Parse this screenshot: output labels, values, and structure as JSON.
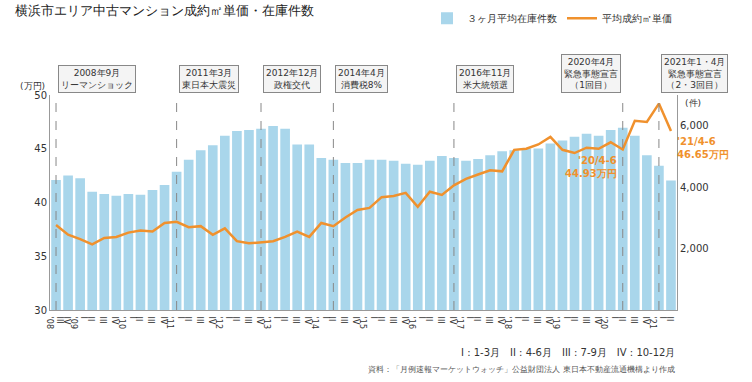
{
  "chart_data": {
    "type": "bar_line",
    "title": "横浜市エリア中古マンション成約㎡単価・在庫件数",
    "ylabel": "(万円)",
    "y2label": "(件)",
    "categories": [
      "III\n'08",
      "IV",
      "I\n'09",
      "II",
      "III",
      "IV",
      "I\n'10",
      "II",
      "III",
      "IV",
      "I\n'11",
      "II",
      "III",
      "IV",
      "I\n'12",
      "II",
      "III",
      "IV",
      "I\n'13",
      "II",
      "III",
      "IV",
      "I\n'14",
      "II",
      "III",
      "IV",
      "I\n'15",
      "II",
      "III",
      "IV",
      "I\n'16",
      "II",
      "III",
      "IV",
      "I\n'17",
      "II",
      "III",
      "IV",
      "I\n'18",
      "II",
      "III",
      "IV",
      "I\n'19",
      "II",
      "III",
      "IV",
      "I\n'20",
      "II",
      "III",
      "IV",
      "I\n'21",
      "II"
    ],
    "series": [
      {
        "name": "３ヶ月平均在庫件数",
        "type": "bar",
        "axis": "y2",
        "color": "#a9d6eb",
        "values": [
          4230,
          4380,
          4290,
          3850,
          3780,
          3720,
          3780,
          3750,
          3910,
          4070,
          4500,
          4890,
          5200,
          5360,
          5670,
          5830,
          5860,
          5900,
          5990,
          5900,
          5390,
          5390,
          4950,
          4890,
          4790,
          4790,
          4890,
          4890,
          4860,
          4760,
          4730,
          4860,
          5010,
          4950,
          4860,
          4920,
          5040,
          5170,
          5200,
          5260,
          5260,
          5420,
          5520,
          5640,
          5740,
          5670,
          5860,
          5930,
          5670,
          5040,
          4700,
          4220
        ]
      },
      {
        "name": "平均成約㎡単価",
        "type": "line",
        "color": "#f0912d",
        "values": [
          37.9,
          37.0,
          36.6,
          36.1,
          36.7,
          36.8,
          37.2,
          37.4,
          37.3,
          38.1,
          38.2,
          37.7,
          37.8,
          37.0,
          37.6,
          36.4,
          36.2,
          36.3,
          36.4,
          36.8,
          37.3,
          36.8,
          38.1,
          37.8,
          38.6,
          39.3,
          39.5,
          40.5,
          40.6,
          40.9,
          39.6,
          41.0,
          40.7,
          41.6,
          42.2,
          42.6,
          43.0,
          42.9,
          44.9,
          45.0,
          45.4,
          46.1,
          44.9,
          44.6,
          45.1,
          45.0,
          45.6,
          44.93,
          47.6,
          47.5,
          49.2,
          46.65
        ]
      }
    ],
    "ylim": [
      30,
      50
    ],
    "yticks": [
      30,
      35,
      40,
      45,
      50
    ],
    "y2lim": [
      0,
      7000
    ],
    "y2ticks": [
      {
        "value": 2000,
        "label": "2,000"
      },
      {
        "value": 4000,
        "label": "4,000"
      },
      {
        "value": 6000,
        "label": "6,000"
      }
    ],
    "grid": false,
    "legend": "upper right",
    "events": [
      {
        "index": 0,
        "lines": [
          "2008年9月",
          "リーマンショック"
        ]
      },
      {
        "index": 10,
        "lines": [
          "2011年3月",
          "東日本大震災"
        ]
      },
      {
        "index": 17,
        "lines": [
          "2012年12月",
          "政権交代"
        ]
      },
      {
        "index": 23,
        "lines": [
          "2014年4月",
          "消費税8%"
        ]
      },
      {
        "index": 33,
        "lines": [
          "2016年11月",
          "米大統領選"
        ]
      },
      {
        "index": 47,
        "lines": [
          "2020年4月",
          "緊急事態宣言",
          "（1回目）"
        ]
      },
      {
        "index": 50,
        "lines": [
          "2021年1・4月",
          "緊急事態宣言",
          "（2・3回目）"
        ]
      }
    ],
    "annotations": [
      {
        "index": 47,
        "value": 44.93,
        "lines": [
          "'20/4-6",
          "44.93万円"
        ]
      },
      {
        "index": 51,
        "value": 46.65,
        "lines": [
          "'21/4-6",
          "46.65万円"
        ]
      }
    ],
    "notes": [
      "I : 1-3月　II : 4-6月　III : 7-9月　IV : 10-12月",
      "資料：「月例速報マーケットウォッチ」公益財団法人 東日本不動産流通機構より作成"
    ]
  }
}
